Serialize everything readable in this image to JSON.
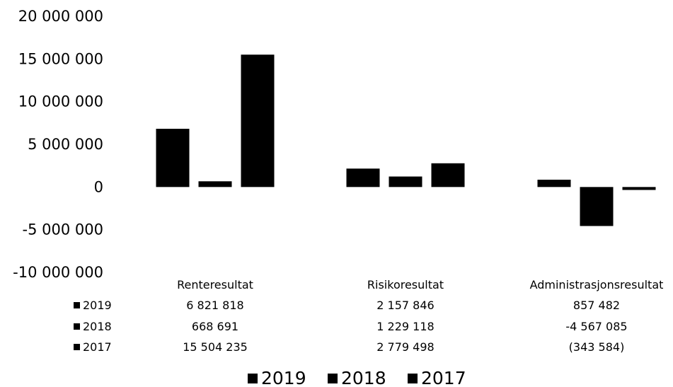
{
  "chart_data": {
    "type": "bar",
    "categories": [
      "Renteresultat",
      "Risikoresultat",
      "Administrasjonsresultat"
    ],
    "series": [
      {
        "name": "2019",
        "values": [
          6821818,
          2157846,
          857482
        ],
        "labels": [
          "6 821 818",
          "2 157 846",
          "857 482"
        ]
      },
      {
        "name": "2018",
        "values": [
          668691,
          1229118,
          -4567085
        ],
        "labels": [
          "668 691",
          "1 229 118",
          "-4 567 085"
        ]
      },
      {
        "name": "2017",
        "values": [
          15504235,
          2779498,
          -343584
        ],
        "labels": [
          "15 504 235",
          "2 779 498",
          "(343 584)"
        ]
      }
    ],
    "ylim": [
      -10000000,
      20000000
    ],
    "yticks": [
      20000000,
      15000000,
      10000000,
      5000000,
      0,
      -5000000,
      -10000000
    ],
    "ytick_labels": [
      "20 000 000",
      "15 000 000",
      "10 000 000",
      "5 000 000",
      "0",
      "-5 000 000",
      "-10 000 000"
    ],
    "data_table": true,
    "legend": "bottom",
    "grid": false,
    "bar_color": "#000000"
  }
}
